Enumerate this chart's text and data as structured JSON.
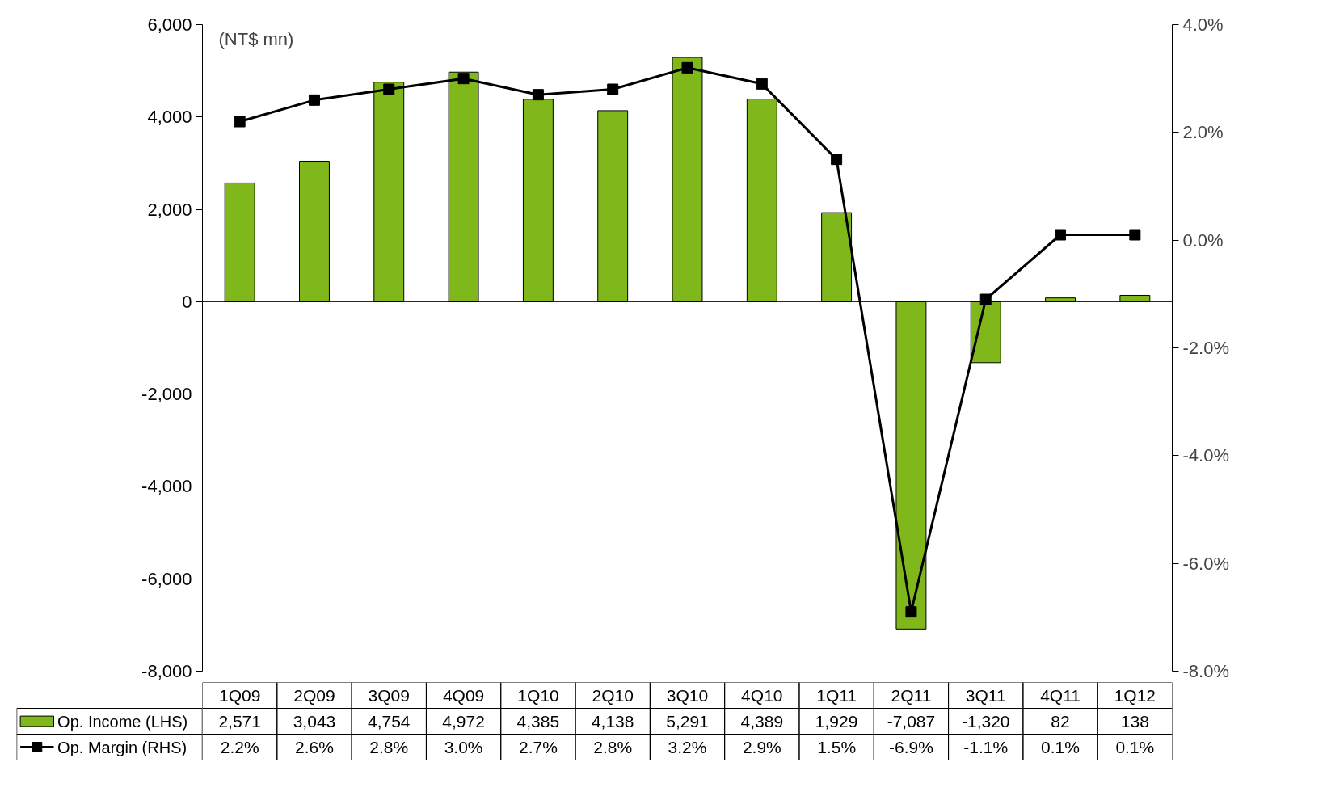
{
  "chart_data": {
    "type": "bar",
    "categories": [
      "1Q09",
      "2Q09",
      "3Q09",
      "4Q09",
      "1Q10",
      "2Q10",
      "3Q10",
      "4Q10",
      "1Q11",
      "2Q11",
      "3Q11",
      "4Q11",
      "1Q12"
    ],
    "series": [
      {
        "name": "Op. Income (LHS)",
        "color": "#80b81c",
        "values": [
          2571,
          3043,
          4754,
          4972,
          4385,
          4138,
          5291,
          4389,
          1929,
          -7087,
          -1320,
          82,
          138
        ],
        "value_labels": [
          "2,571",
          "3,043",
          "4,754",
          "4,972",
          "4,385",
          "4,138",
          "5,291",
          "4,389",
          "1,929",
          "-7,087",
          "-1,320",
          "82",
          "138"
        ]
      },
      {
        "name": "Op. Margin (RHS)",
        "type": "line",
        "axis": "y2",
        "color": "#000000",
        "values": [
          2.2,
          2.6,
          2.8,
          3.0,
          2.7,
          2.8,
          3.2,
          2.9,
          1.5,
          -6.9,
          -1.1,
          0.1,
          0.1
        ],
        "value_labels": [
          "2.2%",
          "2.6%",
          "2.8%",
          "3.0%",
          "2.7%",
          "2.8%",
          "3.2%",
          "2.9%",
          "1.5%",
          "-6.9%",
          "-1.1%",
          "0.1%",
          "0.1%"
        ]
      }
    ],
    "ylim": [
      -8000,
      6000
    ],
    "yticks": [
      {
        "value": -8000,
        "label": "-8,000"
      },
      {
        "value": -6000,
        "label": "-6,000"
      },
      {
        "value": -4000,
        "label": "-4,000"
      },
      {
        "value": -2000,
        "label": "-2,000"
      },
      0,
      {
        "value": 2000,
        "label": "2,000"
      },
      {
        "value": 4000,
        "label": "4,000"
      },
      {
        "value": 6000,
        "label": "6,000"
      }
    ],
    "y2lim": [
      -8,
      4
    ],
    "y2ticks": [
      {
        "value": -8,
        "label": "-8.0%"
      },
      {
        "value": -6,
        "label": "-6.0%"
      },
      {
        "value": -4,
        "label": "-4.0%"
      },
      {
        "value": -2,
        "label": "-2.0%"
      },
      {
        "value": 0,
        "label": "0.0%"
      },
      {
        "value": 2,
        "label": "2.0%"
      },
      {
        "value": 4,
        "label": "4.0%"
      }
    ],
    "annotations": [
      "(NT$ mn)"
    ],
    "ref_lines": [
      {
        "axis": "y",
        "value": 0,
        "color": "#000000"
      }
    ],
    "marker": "square",
    "line_style": "solid",
    "grid": false,
    "legend": "bottom left"
  }
}
